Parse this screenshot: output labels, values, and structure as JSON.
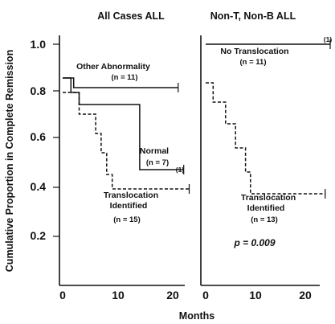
{
  "chart_data": {
    "type": "line",
    "xlabel": "Months",
    "ylabel": "Cumulative Proportion in Complete Remission",
    "ylim": [
      0,
      1.0
    ],
    "xlim": [
      0,
      25
    ],
    "y_ticks": [
      "1.0",
      "0.8",
      "0.6",
      "0.4",
      "0.2"
    ],
    "x_ticks": [
      "0",
      "10",
      "20"
    ],
    "panels": [
      {
        "title": "All Cases ALL",
        "series": [
          {
            "name": "Other Abnormality",
            "n_label": "(n = 11)",
            "style": "solid",
            "points": [
              [
                0,
                0.86
              ],
              [
                2,
                0.86
              ],
              [
                2,
                0.82
              ],
              [
                21,
                0.82
              ]
            ]
          },
          {
            "name": "Normal",
            "n_label": "(n = 7)",
            "censor_note": "(1)",
            "style": "solid",
            "points": [
              [
                0,
                0.86
              ],
              [
                1.5,
                0.86
              ],
              [
                1.5,
                0.8
              ],
              [
                3,
                0.8
              ],
              [
                3,
                0.75
              ],
              [
                14,
                0.75
              ],
              [
                14,
                0.48
              ],
              [
                22,
                0.48
              ]
            ]
          },
          {
            "name": "Translocation Identified",
            "n_label": "(n = 15)",
            "style": "dashed",
            "points": [
              [
                0,
                0.8
              ],
              [
                3,
                0.8
              ],
              [
                3,
                0.71
              ],
              [
                6,
                0.71
              ],
              [
                6,
                0.63
              ],
              [
                7,
                0.63
              ],
              [
                7,
                0.55
              ],
              [
                8,
                0.55
              ],
              [
                8,
                0.46
              ],
              [
                9,
                0.46
              ],
              [
                9,
                0.4
              ],
              [
                23,
                0.4
              ]
            ]
          }
        ],
        "labels": {
          "other_name": "Other Abnormality",
          "other_n": "(n = 11)",
          "normal_name": "Normal",
          "normal_n": "(n = 7)",
          "normal_note": "(1)",
          "trans_name_1": "Translocation",
          "trans_name_2": "Identified",
          "trans_n": "(n = 15)"
        }
      },
      {
        "title": "Non-T, Non-B ALL",
        "series": [
          {
            "name": "No Translocation",
            "n_label": "(n = 11)",
            "censor_note": "(1)",
            "style": "solid",
            "points": [
              [
                0,
                1.0
              ],
              [
                25,
                1.0
              ]
            ]
          },
          {
            "name": "Translocation Identified",
            "n_label": "(n = 13)",
            "style": "dashed",
            "points": [
              [
                0,
                0.84
              ],
              [
                1.5,
                0.84
              ],
              [
                1.5,
                0.76
              ],
              [
                4,
                0.76
              ],
              [
                4,
                0.67
              ],
              [
                6,
                0.67
              ],
              [
                6,
                0.57
              ],
              [
                8,
                0.57
              ],
              [
                8,
                0.47
              ],
              [
                9,
                0.47
              ],
              [
                9,
                0.38
              ],
              [
                24,
                0.38
              ]
            ]
          }
        ],
        "labels": {
          "none_name": "No Translocation",
          "none_n": "(n = 11)",
          "none_note": "(1)",
          "trans_name_1": "Translocation",
          "trans_name_2": "Identified",
          "trans_n": "(n = 13)",
          "pvalue": "p = 0.009"
        }
      }
    ]
  }
}
